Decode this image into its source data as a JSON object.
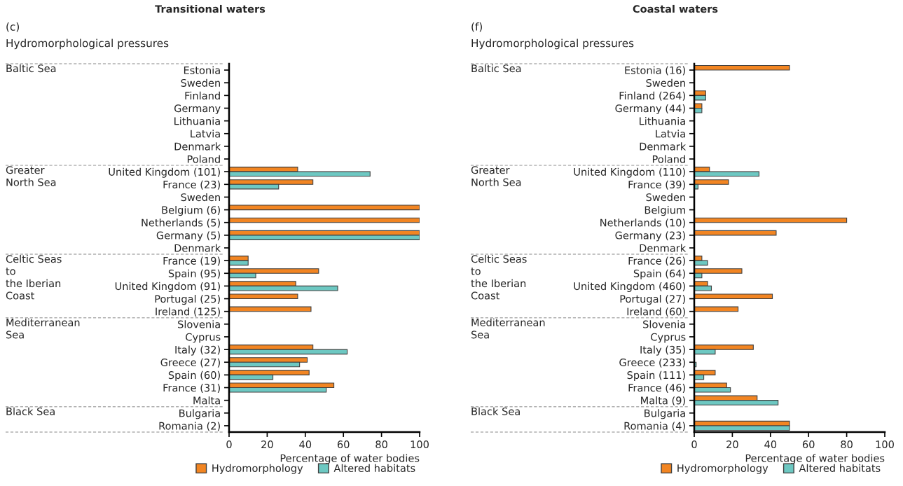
{
  "chart_data": [
    {
      "type": "bar",
      "orientation": "horizontal",
      "title": "Transitional waters",
      "subtitle": "(c)\nHydromorphological pressures",
      "xlabel": "Percentage of water bodies",
      "categories": [
        "Estonia",
        "Sweden",
        "Finland",
        "Germany",
        "Lithuania",
        "Latvia",
        "Denmark",
        "Poland",
        "United Kingdom (101)",
        "France (23)",
        "Sweden",
        "Belgium (6)",
        "Netherlands (5)",
        "Germany (5)",
        "Denmark",
        "France (19)",
        "Spain (95)",
        "United Kingdom (91)",
        "Portugal (25)",
        "Ireland (125)",
        "Slovenia",
        "Cyprus",
        "Italy (32)",
        "Greece (27)",
        "Spain (60)",
        "France (31)",
        "Malta",
        "Bulgaria",
        "Romania (2)"
      ],
      "series": [
        {
          "name": "Hydromorphology",
          "color": "#f28522",
          "values": [
            null,
            null,
            null,
            null,
            null,
            null,
            null,
            null,
            36,
            44,
            null,
            100,
            100,
            100,
            null,
            10,
            47,
            35,
            36,
            43,
            null,
            null,
            44,
            41,
            42,
            55,
            null,
            null,
            null
          ]
        },
        {
          "name": "Altered habitats",
          "color": "#6dc8c2",
          "values": [
            null,
            null,
            null,
            null,
            null,
            null,
            null,
            null,
            74,
            26,
            null,
            null,
            null,
            100,
            null,
            10,
            14,
            57,
            null,
            null,
            null,
            null,
            62,
            37,
            23,
            51,
            null,
            null,
            null
          ]
        }
      ],
      "xlim": [
        0,
        100
      ],
      "xticks": [
        0,
        20,
        40,
        60,
        80,
        100
      ],
      "legend": "bottom",
      "annotations": [
        "Baltic Sea",
        "Greater\nNorth Sea",
        "Celtic Seas\nto\nthe Iberian\nCoast",
        "Mediterranean\nSea",
        "Black Sea"
      ]
    },
    {
      "type": "bar",
      "orientation": "horizontal",
      "title": "Coastal waters",
      "subtitle": "(f)\nHydromorphological pressures",
      "xlabel": "Percentage of water bodies",
      "categories": [
        "Estonia (16)",
        "Sweden",
        "Finland (264)",
        "Germany (44)",
        "Lithuania",
        "Latvia",
        "Denmark",
        "Poland",
        "United Kingdom (110)",
        "France (39)",
        "Sweden",
        "Belgium",
        "Netherlands (10)",
        "Germany (23)",
        "Denmark",
        "France (26)",
        "Spain (64)",
        "United Kingdom (460)",
        "Portugal (27)",
        "Ireland (60)",
        "Slovenia",
        "Cyprus",
        "Italy (35)",
        "Greece (233)",
        "Spain (111)",
        "France (46)",
        "Malta (9)",
        "Bulgaria",
        "Romania (4)"
      ],
      "series": [
        {
          "name": "Hydromorphology",
          "color": "#f28522",
          "values": [
            50,
            null,
            6,
            4,
            null,
            null,
            null,
            null,
            8,
            18,
            null,
            null,
            80,
            43,
            null,
            4,
            25,
            7,
            41,
            23,
            null,
            null,
            31,
            null,
            11,
            17,
            33,
            null,
            50
          ]
        },
        {
          "name": "Altered habitats",
          "color": "#6dc8c2",
          "values": [
            null,
            null,
            6,
            4,
            null,
            null,
            null,
            null,
            34,
            2,
            null,
            null,
            null,
            null,
            null,
            7,
            4,
            9,
            null,
            null,
            null,
            null,
            11,
            1,
            5,
            19,
            44,
            null,
            50
          ]
        }
      ],
      "xlim": [
        0,
        100
      ],
      "xticks": [
        0,
        20,
        40,
        60,
        80,
        100
      ],
      "legend": "bottom",
      "annotations": [
        "Baltic Sea",
        "Greater\nNorth Sea",
        "Celtic Seas\nto\nthe Iberian\nCoast",
        "Mediterranean\nSea",
        "Black Sea"
      ]
    }
  ]
}
